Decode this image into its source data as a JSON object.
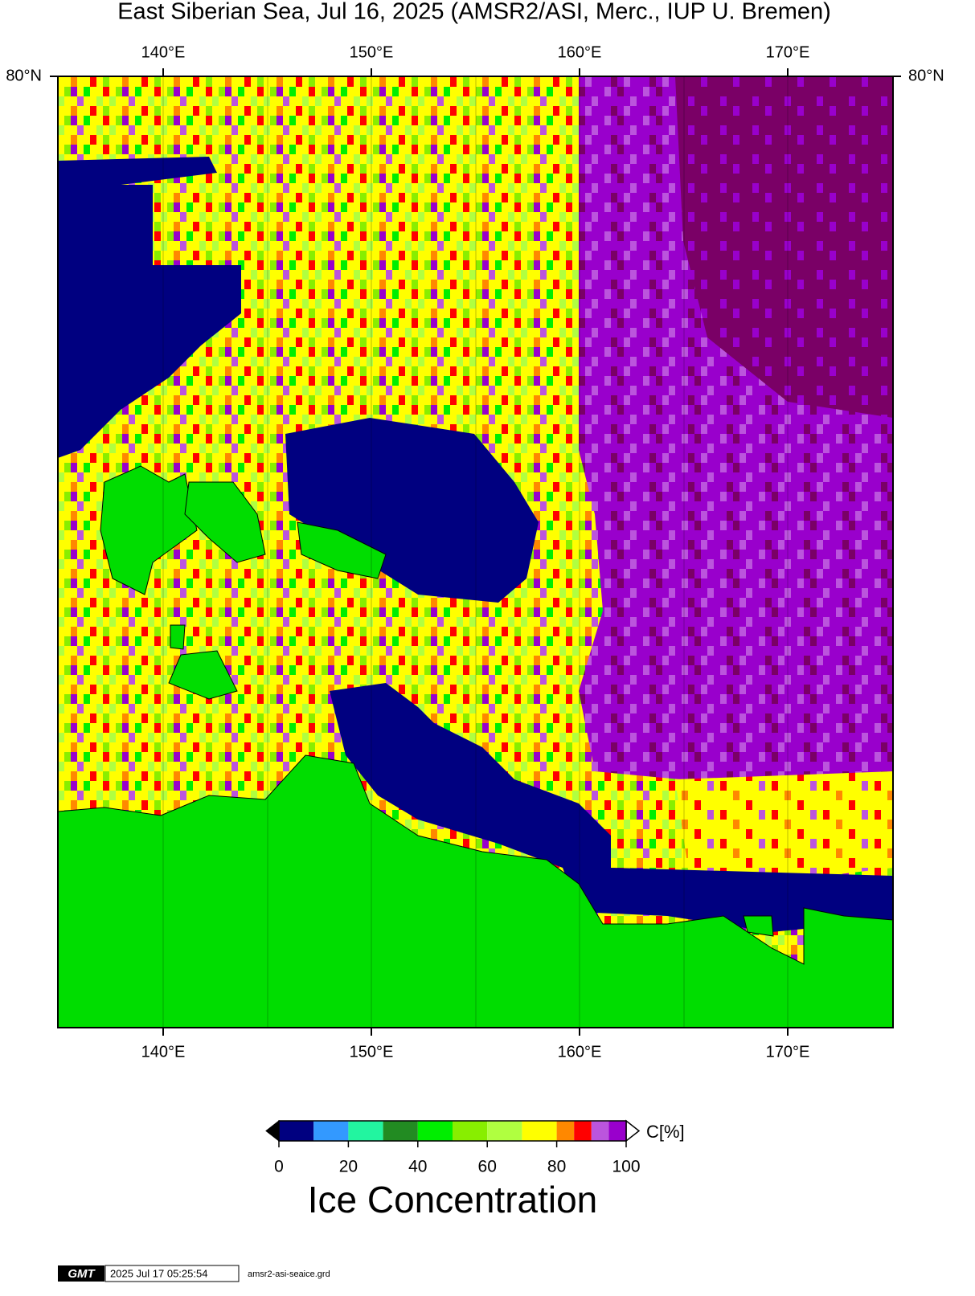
{
  "title": "East Siberian Sea, Jul 16, 2025 (AMSR2/ASI, Merc., IUP U. Bremen)",
  "map": {
    "lon_labels": [
      "140°E",
      "150°E",
      "160°E",
      "170°E"
    ],
    "lat_label": "80°N"
  },
  "colorbar": {
    "label": "C[%]",
    "title": "Ice Concentration",
    "range": [
      0,
      100
    ],
    "ticks": [
      0,
      20,
      40,
      60,
      80,
      100
    ],
    "boundaries": [
      0,
      10,
      20,
      30,
      40,
      50,
      60,
      70,
      80,
      85,
      90,
      95,
      100
    ],
    "colors": [
      "#000080",
      "#3399ff",
      "#22f5a0",
      "#228b22",
      "#00ee00",
      "#88ee00",
      "#b0ff40",
      "#ffff00",
      "#ff8800",
      "#ff0000",
      "#bb55dd",
      "#9900cc"
    ],
    "under_color": "#000000",
    "over_color": "#ffffff"
  },
  "footer": {
    "logo": "GMT",
    "timestamp": "2025 Jul 17 05:25:54",
    "file": "amsr2-asi-seaice.grd"
  }
}
